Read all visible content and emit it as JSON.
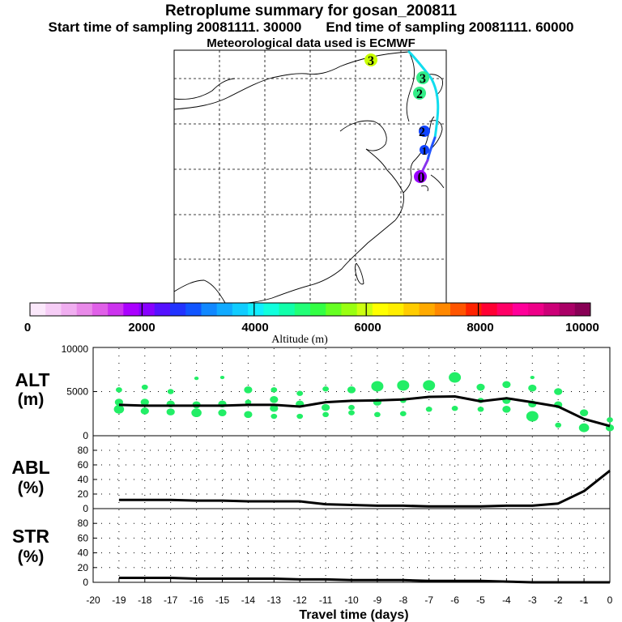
{
  "header": {
    "title": "Retroplume summary for gosan_200811",
    "start_label": "Start time of sampling 20081111. 30000",
    "end_label": "End time of sampling 20081111. 60000",
    "met_label": "Meteorological data used is ECMWF"
  },
  "map": {
    "markers": [
      {
        "label": "3",
        "color": "#c8ff00"
      },
      {
        "label": "3",
        "color": "#33ee88"
      },
      {
        "label": "2",
        "color": "#33ee88"
      },
      {
        "label": "2",
        "color": "#1144ff"
      },
      {
        "label": "1",
        "color": "#1144ff"
      },
      {
        "label": "0",
        "color": "#9900ff"
      }
    ]
  },
  "colorbar": {
    "tick_labels": [
      "0",
      "2000",
      "4000",
      "6000",
      "8000",
      "10000"
    ],
    "axis_label": "Altitude (m)",
    "colors": [
      "#fbe8fb",
      "#f6cdf6",
      "#f0aef0",
      "#e98ae9",
      "#e060e8",
      "#cc33ee",
      "#aa00ff",
      "#8800ff",
      "#5511ff",
      "#2233ff",
      "#1155ff",
      "#1188ff",
      "#11aaff",
      "#11ccff",
      "#11eeff",
      "#11ffdd",
      "#11ffaa",
      "#22ff77",
      "#33ff44",
      "#66ff22",
      "#99ff11",
      "#ccff11",
      "#ffff00",
      "#ffee00",
      "#ffcc00",
      "#ffaa00",
      "#ff8800",
      "#ff5500",
      "#ff2200",
      "#ff0033",
      "#ff0066",
      "#ff0099",
      "#ee0088",
      "#cc0077",
      "#aa0066",
      "#880055"
    ]
  },
  "chart_data": [
    {
      "type": "line",
      "panel": "ALT",
      "ylabel_top": "ALT",
      "ylabel_bottom": "(m)",
      "ylim": [
        0,
        10000
      ],
      "y_ticks": [
        "10000",
        "5000",
        "0"
      ],
      "x": [
        -19,
        -18,
        -17,
        -16,
        -15,
        -14,
        -13,
        -12,
        -11,
        -10,
        -9,
        -8,
        -7,
        -6,
        -5,
        -4,
        -3,
        -2,
        -1,
        0
      ],
      "values": [
        3500,
        3400,
        3400,
        3400,
        3400,
        3500,
        3500,
        3300,
        3800,
        3950,
        4000,
        4100,
        4400,
        4450,
        3900,
        4250,
        3800,
        3300,
        1900,
        1100
      ],
      "cluster_color": "#22ee66",
      "cluster_points": [
        {
          "x": -19,
          "y": 5200,
          "s": 2
        },
        {
          "x": -19,
          "y": 3800,
          "s": 3
        },
        {
          "x": -19,
          "y": 3000,
          "s": 4
        },
        {
          "x": -18,
          "y": 5500,
          "s": 2
        },
        {
          "x": -18,
          "y": 3800,
          "s": 3
        },
        {
          "x": -18,
          "y": 2800,
          "s": 3
        },
        {
          "x": -17,
          "y": 5000,
          "s": 2
        },
        {
          "x": -17,
          "y": 3600,
          "s": 3
        },
        {
          "x": -17,
          "y": 2700,
          "s": 3
        },
        {
          "x": -16,
          "y": 6500,
          "s": 1
        },
        {
          "x": -16,
          "y": 3500,
          "s": 3
        },
        {
          "x": -16,
          "y": 2600,
          "s": 4
        },
        {
          "x": -15,
          "y": 6600,
          "s": 1
        },
        {
          "x": -15,
          "y": 3600,
          "s": 3
        },
        {
          "x": -15,
          "y": 2600,
          "s": 3
        },
        {
          "x": -14,
          "y": 5200,
          "s": 3
        },
        {
          "x": -14,
          "y": 3800,
          "s": 2
        },
        {
          "x": -14,
          "y": 2400,
          "s": 3
        },
        {
          "x": -13,
          "y": 5200,
          "s": 2
        },
        {
          "x": -13,
          "y": 4100,
          "s": 3
        },
        {
          "x": -13,
          "y": 3100,
          "s": 3
        },
        {
          "x": -13,
          "y": 2200,
          "s": 2
        },
        {
          "x": -12,
          "y": 4800,
          "s": 2
        },
        {
          "x": -12,
          "y": 3600,
          "s": 3
        },
        {
          "x": -12,
          "y": 2200,
          "s": 2
        },
        {
          "x": -11,
          "y": 5300,
          "s": 2
        },
        {
          "x": -11,
          "y": 3200,
          "s": 3
        },
        {
          "x": -11,
          "y": 2400,
          "s": 2
        },
        {
          "x": -10,
          "y": 5200,
          "s": 3
        },
        {
          "x": -10,
          "y": 3200,
          "s": 2
        },
        {
          "x": -10,
          "y": 2600,
          "s": 2
        },
        {
          "x": -9,
          "y": 5600,
          "s": 5
        },
        {
          "x": -9,
          "y": 3800,
          "s": 3
        },
        {
          "x": -9,
          "y": 2400,
          "s": 2
        },
        {
          "x": -8,
          "y": 5700,
          "s": 5
        },
        {
          "x": -8,
          "y": 4000,
          "s": 2
        },
        {
          "x": -8,
          "y": 2500,
          "s": 2
        },
        {
          "x": -7,
          "y": 5700,
          "s": 5
        },
        {
          "x": -7,
          "y": 3000,
          "s": 2
        },
        {
          "x": -6,
          "y": 6600,
          "s": 5
        },
        {
          "x": -6,
          "y": 3100,
          "s": 2
        },
        {
          "x": -5,
          "y": 5500,
          "s": 3
        },
        {
          "x": -5,
          "y": 4000,
          "s": 2
        },
        {
          "x": -5,
          "y": 3000,
          "s": 2
        },
        {
          "x": -4,
          "y": 5800,
          "s": 3
        },
        {
          "x": -4,
          "y": 4000,
          "s": 3
        },
        {
          "x": -4,
          "y": 3000,
          "s": 3
        },
        {
          "x": -3,
          "y": 6600,
          "s": 1
        },
        {
          "x": -3,
          "y": 5400,
          "s": 3
        },
        {
          "x": -3,
          "y": 3600,
          "s": 3
        },
        {
          "x": -3,
          "y": 2200,
          "s": 5
        },
        {
          "x": -2,
          "y": 5000,
          "s": 3
        },
        {
          "x": -2,
          "y": 3500,
          "s": 3
        },
        {
          "x": -2,
          "y": 1200,
          "s": 2
        },
        {
          "x": -1,
          "y": 2600,
          "s": 3
        },
        {
          "x": -1,
          "y": 900,
          "s": 4
        },
        {
          "x": 0,
          "y": 1800,
          "s": 2
        },
        {
          "x": 0,
          "y": 900,
          "s": 3
        }
      ]
    },
    {
      "type": "line",
      "panel": "ABL",
      "ylabel_top": "ABL",
      "ylabel_bottom": "(%)",
      "ylim": [
        0,
        100
      ],
      "y_ticks": [
        "80",
        "60",
        "40",
        "20",
        "0"
      ],
      "x": [
        -19,
        -18,
        -17,
        -16,
        -15,
        -14,
        -13,
        -12,
        -11,
        -10,
        -9,
        -8,
        -7,
        -6,
        -5,
        -4,
        -3,
        -2,
        -1,
        0
      ],
      "values": [
        12,
        12,
        12,
        11,
        11,
        10,
        10,
        10,
        6,
        5,
        4,
        4,
        3,
        3,
        3,
        4,
        4,
        7,
        24,
        52
      ]
    },
    {
      "type": "line",
      "panel": "STR",
      "ylabel_top": "STR",
      "ylabel_bottom": "(%)",
      "ylim": [
        0,
        100
      ],
      "y_ticks": [
        "80",
        "60",
        "40",
        "20",
        "0"
      ],
      "x": [
        -19,
        -18,
        -17,
        -16,
        -15,
        -14,
        -13,
        -12,
        -11,
        -10,
        -9,
        -8,
        -7,
        -6,
        -5,
        -4,
        -3,
        -2,
        -1,
        0
      ],
      "values": [
        6,
        6,
        6,
        5,
        5,
        5,
        5,
        4,
        4,
        3,
        3,
        3,
        2,
        2,
        2,
        1,
        0,
        0,
        0,
        0
      ]
    }
  ],
  "x_axis": {
    "tick_labels": [
      "-20",
      "-19",
      "-18",
      "-17",
      "-16",
      "-15",
      "-14",
      "-13",
      "-12",
      "-11",
      "-10",
      "-9",
      "-8",
      "-7",
      "-6",
      "-5",
      "-4",
      "-3",
      "-2",
      "-1",
      "0"
    ],
    "label": "Travel time (days)"
  }
}
